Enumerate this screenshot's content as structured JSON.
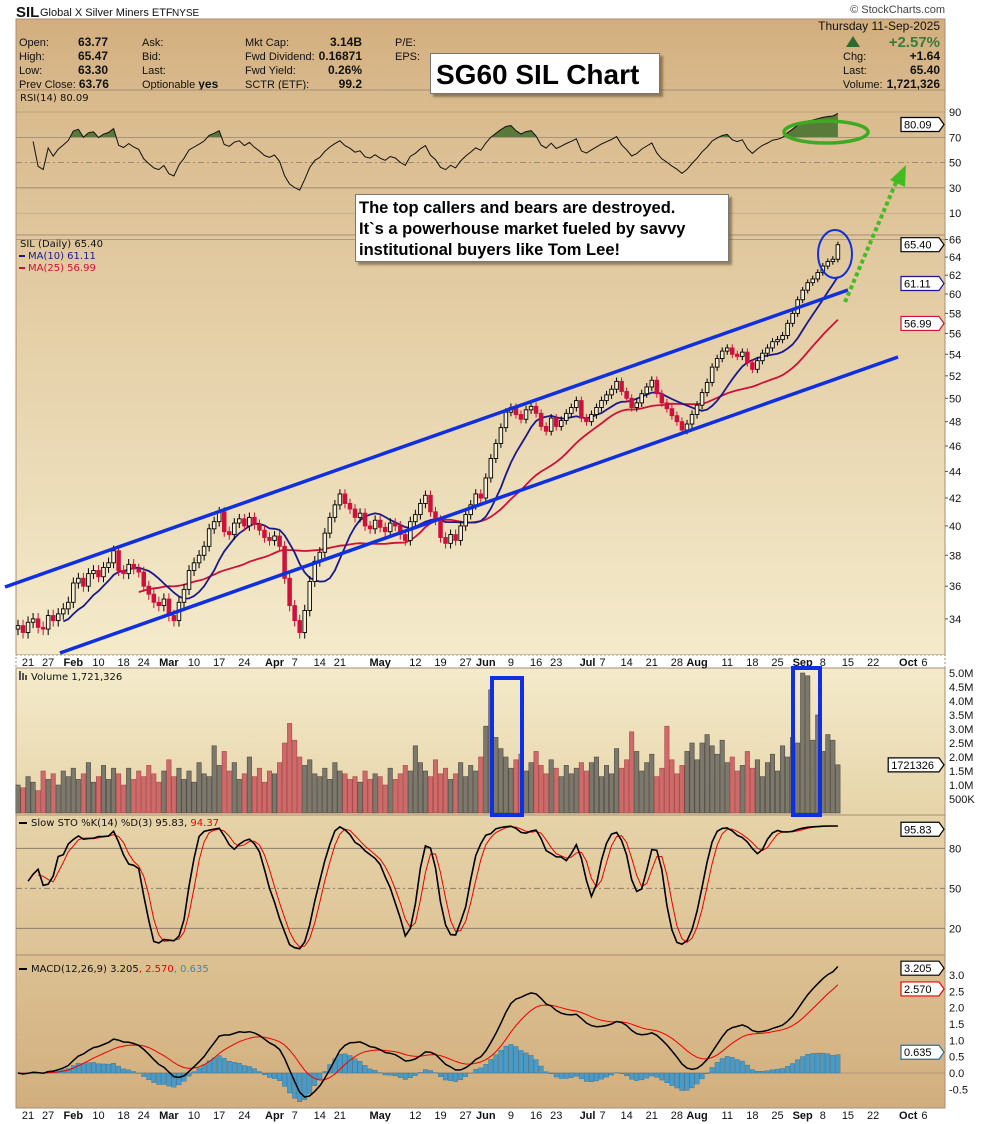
{
  "header": {
    "symbol": "SIL",
    "name": "Global X Silver Miners ETF",
    "exchange": "NYSE",
    "copyright": "© StockCharts.com",
    "date": "Thursday  11-Sep-2025",
    "pct_change": "+2.57%",
    "chg_label": "Chg:",
    "chg": "+1.64",
    "last_label": "Last:",
    "last": "65.40",
    "volume_label": "Volume:",
    "volume": "1,721,326",
    "col1": [
      {
        "label": "Open:",
        "value": "63.77"
      },
      {
        "label": "High:",
        "value": "65.47"
      },
      {
        "label": "Low:",
        "value": "63.30"
      },
      {
        "label": "Prev Close:",
        "value": "63.76"
      }
    ],
    "col2": [
      {
        "label": "Ask:",
        "value": ""
      },
      {
        "label": "Bid:",
        "value": ""
      },
      {
        "label": "Last:",
        "value": ""
      },
      {
        "label": "Optionable",
        "value": "yes"
      }
    ],
    "col3": [
      {
        "label": "Mkt Cap:",
        "value": "3.14B"
      },
      {
        "label": "Fwd Dividend:",
        "value": "0.16871"
      },
      {
        "label": "Fwd Yield:",
        "value": "0.26%"
      },
      {
        "label": "SCTR (ETF):",
        "value": "99.2"
      }
    ],
    "col4": [
      {
        "label": "P/E:"
      },
      {
        "label": "EPS:"
      }
    ]
  },
  "annotations": {
    "title": "SG60 SIL Chart",
    "comment_lines": [
      "The top callers and bears are destroyed.",
      "It`s a powerhouse market fueled by savvy",
      "institutional buyers like Tom Lee!"
    ]
  },
  "panels": {
    "rsi": {
      "label": "RSI(14) 80.09",
      "value": "80.09",
      "ticks": [
        "90",
        "70",
        "50",
        "30",
        "10"
      ]
    },
    "price": {
      "label": "SIL (Daily) 65.40",
      "ma10_label": "MA(10) 61.11",
      "ma25_label": "MA(25) 56.99",
      "last_box": "65.40",
      "ma10_box": "61.11",
      "ma25_box": "56.99",
      "ticks": [
        66,
        64,
        62,
        60,
        58,
        56,
        54,
        52,
        50,
        48,
        46,
        44,
        42,
        40,
        38,
        36,
        34
      ]
    },
    "volume": {
      "label": "Volume 1,721,326",
      "box": "1721326",
      "ticks": [
        {
          "t": "5.0M",
          "v": 5
        },
        {
          "t": "4.5M",
          "v": 4.5
        },
        {
          "t": "4.0M",
          "v": 4
        },
        {
          "t": "3.5M",
          "v": 3.5
        },
        {
          "t": "3.0M",
          "v": 3
        },
        {
          "t": "2.5M",
          "v": 2.5
        },
        {
          "t": "2.0M",
          "v": 2
        },
        {
          "t": "1.5M",
          "v": 1.5
        },
        {
          "t": "1.0M",
          "v": 1
        },
        {
          "t": "500K",
          "v": 0.5
        }
      ]
    },
    "sto": {
      "label_main": "Slow STO %K(14) %D(3) 95.83,",
      "label_d": " 94.37",
      "box": "95.83",
      "ticks": [
        "80",
        "50",
        "20"
      ]
    },
    "macd": {
      "label_main": "MACD(12,26,9) 3.205",
      "label_signal": ", 2.570",
      "label_hist": ", 0.635",
      "box_macd": "3.205",
      "box_signal": "2.570",
      "box_hist": "0.635",
      "ticks": [
        "3.0",
        "2.5",
        "2.0",
        "1.5",
        "1.0",
        "0.5",
        "0.0",
        "-0.5"
      ]
    }
  },
  "colors": {
    "ma10": "#1a1a8c",
    "ma25": "#d0103a",
    "up": "#000000",
    "down": "#d0103a",
    "hist": "#4b9ac6",
    "channel": "#1030e0",
    "arrow": "#44bb22",
    "pct_up": "#3a7a3a"
  },
  "chart_data": {
    "type": "candlestick",
    "title": "SIL Global X Silver Miners ETF (Daily)",
    "x_ticks": [
      {
        "label": "21",
        "i": 2
      },
      {
        "label": "27",
        "i": 6
      },
      {
        "label": "Feb",
        "i": 11,
        "bold": true
      },
      {
        "label": "10",
        "i": 16
      },
      {
        "label": "18",
        "i": 21
      },
      {
        "label": "24",
        "i": 25
      },
      {
        "label": "Mar",
        "i": 30,
        "bold": true
      },
      {
        "label": "10",
        "i": 35
      },
      {
        "label": "17",
        "i": 40
      },
      {
        "label": "24",
        "i": 45
      },
      {
        "label": "Apr",
        "i": 51,
        "bold": true
      },
      {
        "label": "7",
        "i": 55
      },
      {
        "label": "14",
        "i": 60
      },
      {
        "label": "21",
        "i": 64
      },
      {
        "label": "May",
        "i": 72,
        "bold": true
      },
      {
        "label": "12",
        "i": 79
      },
      {
        "label": "19",
        "i": 84
      },
      {
        "label": "27",
        "i": 89
      },
      {
        "label": "Jun",
        "i": 93,
        "bold": true
      },
      {
        "label": "9",
        "i": 98
      },
      {
        "label": "16",
        "i": 103
      },
      {
        "label": "23",
        "i": 107
      },
      {
        "label": "Jul",
        "i": 113,
        "bold": true
      },
      {
        "label": "7",
        "i": 116
      },
      {
        "label": "14",
        "i": 121
      },
      {
        "label": "21",
        "i": 126
      },
      {
        "label": "28",
        "i": 131
      },
      {
        "label": "Aug",
        "i": 135,
        "bold": true
      },
      {
        "label": "11",
        "i": 141
      },
      {
        "label": "18",
        "i": 146
      },
      {
        "label": "25",
        "i": 151
      },
      {
        "label": "Sep",
        "i": 156,
        "bold": true
      },
      {
        "label": "8",
        "i": 160
      },
      {
        "label": "15",
        "i": 165
      },
      {
        "label": "22",
        "i": 170
      },
      {
        "label": "Oct",
        "i": 178,
        "bold": true
      },
      {
        "label": "6",
        "i": 180
      }
    ],
    "first_open": 33.4,
    "close": [
      33.6,
      33.2,
      33.8,
      34.0,
      33.5,
      33.4,
      34.2,
      33.9,
      34.3,
      34.6,
      35.0,
      36.2,
      36.5,
      36.0,
      36.8,
      37.0,
      36.6,
      37.2,
      37.5,
      38.3,
      37.0,
      36.8,
      37.4,
      37.1,
      36.9,
      36.0,
      35.5,
      35.0,
      34.8,
      35.2,
      34.2,
      33.9,
      35.0,
      35.8,
      37.0,
      37.5,
      38.0,
      38.6,
      39.8,
      40.3,
      41.0,
      39.6,
      39.4,
      40.2,
      40.5,
      40.0,
      40.6,
      40.1,
      39.7,
      39.2,
      39.0,
      39.3,
      38.6,
      36.5,
      34.8,
      33.9,
      33.2,
      34.5,
      36.3,
      37.6,
      38.2,
      39.5,
      40.6,
      41.5,
      42.3,
      41.6,
      41.2,
      40.6,
      40.9,
      40.0,
      39.8,
      40.4,
      39.9,
      39.6,
      40.2,
      40.0,
      39.4,
      39.0,
      40.3,
      40.8,
      41.6,
      42.2,
      41.0,
      40.4,
      39.2,
      38.8,
      39.4,
      39.0,
      40.0,
      40.8,
      41.5,
      42.3,
      42.0,
      43.5,
      45.0,
      46.2,
      47.5,
      48.8,
      49.2,
      48.6,
      48.2,
      49.0,
      49.3,
      48.7,
      47.6,
      47.2,
      48.3,
      47.6,
      48.1,
      48.7,
      49.2,
      49.8,
      48.3,
      48.0,
      48.6,
      49.2,
      49.8,
      50.3,
      50.8,
      51.5,
      50.6,
      50.0,
      49.2,
      49.6,
      50.4,
      51.0,
      51.6,
      50.4,
      49.6,
      49.1,
      48.5,
      48.0,
      47.3,
      47.8,
      48.6,
      49.4,
      50.5,
      51.4,
      52.8,
      53.6,
      54.3,
      54.6,
      54.0,
      53.8,
      54.2,
      53.2,
      52.6,
      53.4,
      54.1,
      54.6,
      55.2,
      55.4,
      55.8,
      57.0,
      58.0,
      59.4,
      60.4,
      61.2,
      61.6,
      62.3,
      63.0,
      63.5,
      63.76,
      65.4
    ],
    "volume_millions": [
      1.0,
      0.9,
      1.3,
      1.1,
      0.8,
      1.5,
      1.2,
      1.4,
      1.0,
      1.5,
      1.3,
      1.6,
      1.2,
      1.4,
      1.8,
      1.1,
      1.3,
      1.7,
      1.2,
      1.6,
      1.4,
      1.0,
      1.6,
      1.2,
      1.5,
      1.3,
      1.7,
      1.4,
      1.1,
      1.5,
      1.9,
      1.3,
      1.6,
      1.2,
      1.5,
      1.1,
      1.8,
      1.4,
      1.3,
      2.4,
      1.7,
      2.2,
      1.5,
      1.8,
      1.2,
      1.4,
      2.0,
      1.3,
      1.6,
      1.1,
      1.5,
      1.4,
      1.8,
      2.5,
      3.2,
      2.6,
      2.0,
      1.7,
      1.9,
      1.4,
      1.3,
      1.6,
      1.2,
      1.8,
      1.5,
      1.4,
      1.2,
      1.3,
      1.1,
      1.5,
      1.2,
      1.4,
      1.3,
      1.0,
      1.6,
      1.2,
      1.4,
      1.7,
      1.5,
      2.4,
      1.8,
      1.5,
      1.3,
      1.9,
      1.4,
      1.6,
      1.2,
      1.4,
      1.8,
      1.3,
      1.7,
      1.5,
      2.0,
      3.1,
      4.4,
      2.7,
      2.3,
      2.0,
      1.6,
      1.9,
      2.1,
      1.5,
      1.8,
      2.2,
      1.7,
      1.4,
      1.9,
      1.6,
      1.3,
      1.7,
      1.4,
      1.6,
      1.8,
      1.5,
      1.8,
      2.0,
      1.3,
      1.7,
      1.4,
      2.3,
      1.6,
      1.9,
      2.9,
      2.2,
      1.5,
      1.8,
      2.1,
      1.3,
      1.6,
      3.1,
      1.9,
      1.4,
      1.7,
      2.2,
      2.5,
      1.9,
      2.5,
      2.8,
      2.4,
      2.1,
      2.6,
      1.8,
      2.0,
      1.5,
      1.7,
      2.2,
      1.6,
      1.9,
      1.3,
      1.8,
      2.1,
      1.5,
      2.4,
      2.0,
      2.7,
      2.5,
      5.0,
      4.9,
      2.6,
      3.5,
      2.2,
      2.8,
      2.6,
      1.72
    ],
    "price_scale": "log",
    "ylim_price": [
      33,
      66
    ],
    "ylim_volume": [
      0,
      5.2
    ],
    "ylim_rsi": [
      0,
      100
    ],
    "ylim_sto": [
      0,
      100
    ],
    "ylim_macd": [
      -1.0,
      3.3
    ],
    "indicators": [
      "MA(10)",
      "MA(25)",
      "RSI(14)",
      "Slow STO %K(14) %D(3)",
      "MACD(12,26,9)"
    ]
  }
}
